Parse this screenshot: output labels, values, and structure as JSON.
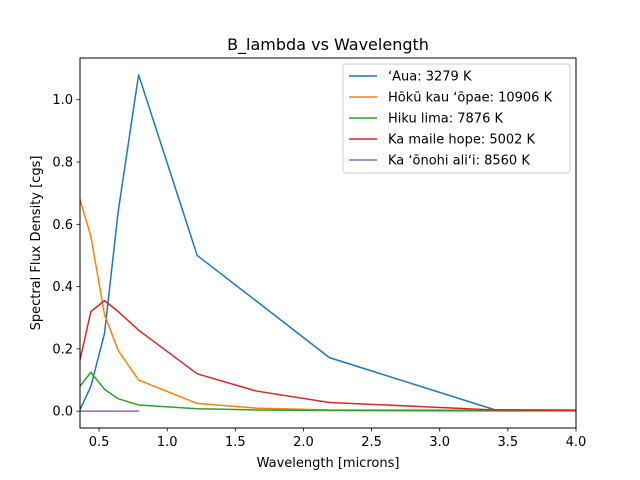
{
  "chart_data": {
    "type": "line",
    "title": "B_lambda vs Wavelength",
    "xlabel": "Wavelength [microns]",
    "ylabel": "Spectral Flux Density [cgs]",
    "xlim": [
      0.36,
      4.0
    ],
    "ylim": [
      -0.054,
      1.134
    ],
    "xticks": [
      0.5,
      1.0,
      1.5,
      2.0,
      2.5,
      3.0,
      3.5,
      4.0
    ],
    "xtick_labels": [
      "0.5",
      "1.0",
      "1.5",
      "2.0",
      "2.5",
      "3.0",
      "3.5",
      "4.0"
    ],
    "yticks": [
      0.0,
      0.2,
      0.4,
      0.6,
      0.8,
      1.0
    ],
    "ytick_labels": [
      "0.0",
      "0.2",
      "0.4",
      "0.6",
      "0.8",
      "1.0"
    ],
    "grid": false,
    "legend_position": "top-right",
    "x": [
      0.36,
      0.44,
      0.54,
      0.64,
      0.79,
      1.22,
      1.65,
      2.19,
      3.4,
      4.0
    ],
    "series": [
      {
        "name": "ʻAua: 3279 K",
        "color": "#1f77b4",
        "values": [
          0.005,
          0.08,
          0.25,
          0.64,
          1.08,
          0.5,
          0.355,
          0.172,
          0.005,
          0.003
        ]
      },
      {
        "name": "Hōkū kau ʻōpae: 10906 K",
        "color": "#ff7f0e",
        "values": [
          0.68,
          0.56,
          0.31,
          0.195,
          0.1,
          0.025,
          0.01,
          0.004,
          0.004,
          0.004
        ]
      },
      {
        "name": "Hiku lima: 7876 K",
        "color": "#2ca02c",
        "values": [
          0.08,
          0.125,
          0.07,
          0.04,
          0.02,
          0.008,
          0.004,
          0.002,
          0.001,
          0.001
        ]
      },
      {
        "name": "Ka maile hope: 5002 K",
        "color": "#d62728",
        "values": [
          0.165,
          0.32,
          0.355,
          0.32,
          0.26,
          0.12,
          0.065,
          0.028,
          0.004,
          0.003
        ]
      },
      {
        "name": "Ka ʻōnohi aliʻi: 8560 K",
        "color": "#9467bd",
        "x": [
          0.36,
          0.44,
          0.54,
          0.64,
          0.79
        ],
        "values": [
          0.0,
          0.0,
          0.0,
          0.0,
          0.0
        ]
      }
    ]
  }
}
